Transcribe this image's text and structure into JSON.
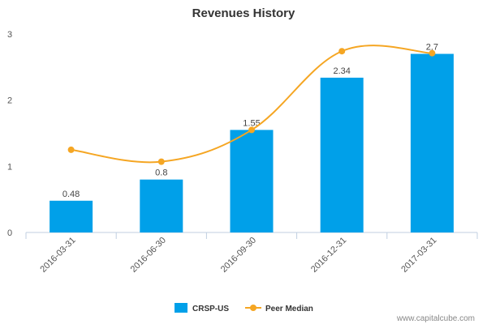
{
  "chart_data": {
    "type": "bar",
    "title": "Revenues History",
    "categories": [
      "2016-03-31",
      "2016-06-30",
      "2016-09-30",
      "2016-12-31",
      "2017-03-31"
    ],
    "series": [
      {
        "name": "CRSP-US",
        "kind": "bar",
        "color": "#00a0e9",
        "values": [
          0.48,
          0.8,
          1.55,
          2.34,
          2.7
        ],
        "labels": [
          "0.48",
          "0.8",
          "1.55",
          "2.34",
          "2.7"
        ]
      },
      {
        "name": "Peer Median",
        "kind": "line",
        "color": "#f5a623",
        "values": [
          1.25,
          1.07,
          1.55,
          2.74,
          2.71
        ]
      }
    ],
    "y_ticks": [
      "0",
      "1",
      "2",
      "3"
    ],
    "ylim": [
      0,
      3
    ],
    "grid": false,
    "legend_position": "bottom-center"
  },
  "watermark": "www.capitalcube.com"
}
